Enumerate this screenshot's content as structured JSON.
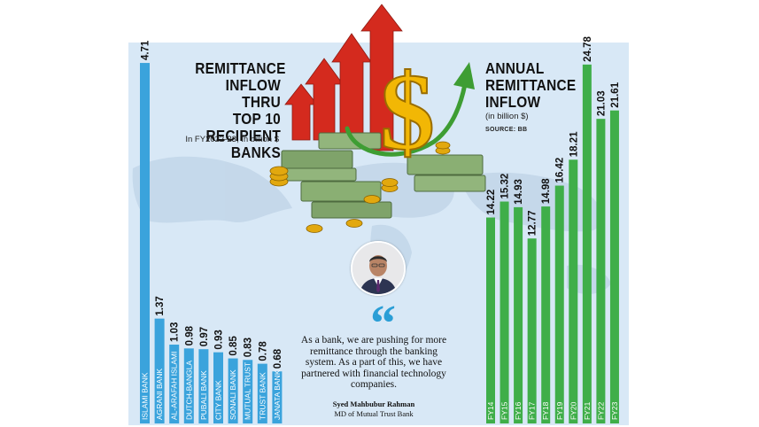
{
  "colors": {
    "left_bars": "#3aa3dc",
    "right_bars": "#3fae49",
    "background": "#d8e8f6",
    "arrow_red": "#d42a1e",
    "dollar_gold": "#f2b705"
  },
  "left_chart": {
    "title_lines": [
      "REMITTANCE",
      "INFLOW THRU",
      "TOP 10 RECIPIENT",
      "BANKS"
    ],
    "subtitle": "In FY2022-23; In billion $"
  },
  "right_chart": {
    "title_lines": [
      "ANNUAL",
      "REMITTANCE",
      "INFLOW"
    ],
    "subtitle": "(in billion $)",
    "source": "SOURCE: BB"
  },
  "quote": {
    "mark": "“",
    "text": "As a bank, we are pushing for more remittance through the banking system. As a part of this, we have partnered with financial technology companies.",
    "name": "Syed Mahbubur Rahman",
    "role": "MD of Mutual Trust Bank"
  },
  "chart_data": [
    {
      "type": "bar",
      "title": "REMITTANCE INFLOW THRU TOP 10 RECIPIENT BANKS",
      "subtitle": "In FY2022-23; In billion $",
      "categories": [
        "ISLAMI BANK",
        "AGRANI BANK",
        "AL-ARAFAH ISLAMI",
        "DUTCH-BANGLA",
        "PUBALI BANK",
        "CITY BANK",
        "SONALI BANK",
        "MUTUAL TRUST",
        "TRUST BANK",
        "JANATA BANK"
      ],
      "values": [
        4.71,
        1.37,
        1.03,
        0.98,
        0.97,
        0.93,
        0.85,
        0.83,
        0.78,
        0.68
      ],
      "labels": [
        "4.71",
        "1.37",
        "1.03",
        "0.98",
        "0.97",
        "0.93",
        "0.85",
        "0.83",
        "0.78",
        "0.68"
      ],
      "ylim": [
        0,
        5.1
      ],
      "xlabel": "",
      "ylabel": ""
    },
    {
      "type": "bar",
      "title": "ANNUAL REMITTANCE INFLOW",
      "subtitle": "(in billion $)",
      "categories": [
        "FY14",
        "FY15",
        "FY16",
        "FY17",
        "FY18",
        "FY19",
        "FY20",
        "FY21",
        "FY22",
        "FY23"
      ],
      "values": [
        14.22,
        15.32,
        14.93,
        12.77,
        14.98,
        16.42,
        18.21,
        24.78,
        21.03,
        21.61
      ],
      "labels": [
        "14.22",
        "15.32",
        "14.93",
        "12.77",
        "14.98",
        "16.42",
        "18.21",
        "24.78",
        "21.03",
        "21.61"
      ],
      "ylim": [
        0,
        28
      ],
      "xlabel": "",
      "ylabel": ""
    }
  ]
}
